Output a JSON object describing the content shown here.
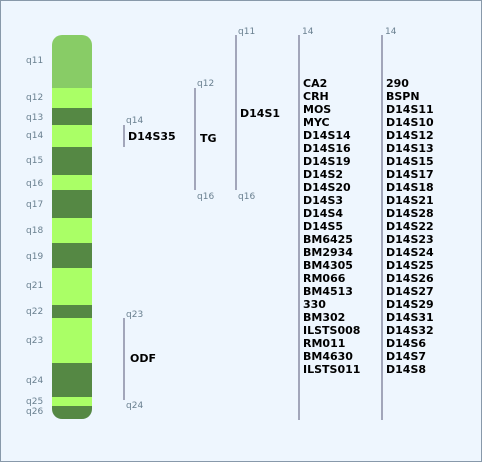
{
  "bands": [
    "q11",
    "q12",
    "q13",
    "q14",
    "q15",
    "q16",
    "q17",
    "q18",
    "q19",
    "q21",
    "q22",
    "q23",
    "q24",
    "q25",
    "q26"
  ],
  "markers": [
    {
      "label": "D14S35",
      "top": "q14"
    },
    {
      "label": "ODF",
      "top": "q23",
      "bottom": "q24"
    },
    {
      "label": "TG",
      "top": "q12",
      "bottom": "q16"
    },
    {
      "label": "D14S1",
      "top": "q11",
      "bottom": "q16"
    }
  ],
  "columns": [
    {
      "header": "14",
      "items": [
        "CA2",
        "CRH",
        "MOS",
        "MYC",
        "D14S14",
        "D14S16",
        "D14S19",
        "D14S2",
        "D14S20",
        "D14S3",
        "D14S4",
        "D14S5",
        "BM6425",
        "BM2934",
        "BM4305",
        "RM066",
        "BM4513",
        "330",
        "BM302",
        "ILSTS008",
        "RM011",
        "BM4630",
        "ILSTS011"
      ]
    },
    {
      "header": "14",
      "items": [
        "290",
        "BSPN",
        "D14S11",
        "D14S10",
        "D14S12",
        "D14S13",
        "D14S15",
        "D14S17",
        "D14S18",
        "D14S21",
        "D14S28",
        "D14S22",
        "D14S23",
        "D14S24",
        "D14S25",
        "D14S26",
        "D14S27",
        "D14S29",
        "D14S31",
        "D14S32",
        "D14S6",
        "D14S7",
        "D14S8"
      ]
    }
  ]
}
